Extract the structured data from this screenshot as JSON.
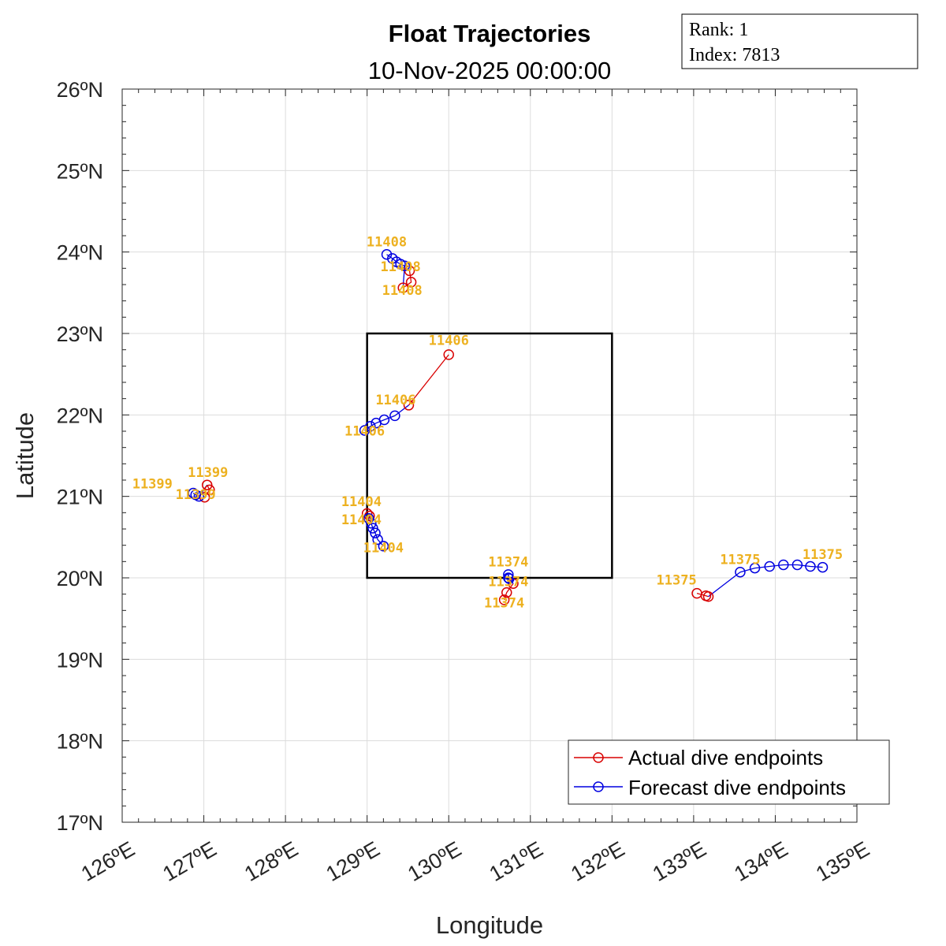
{
  "chart_data": {
    "type": "line",
    "title": "Float Trajectories",
    "subtitle": "10-Nov-2025 00:00:00",
    "xlabel": "Longitude",
    "ylabel": "Latitude",
    "xlim": [
      126,
      135
    ],
    "ylim": [
      17,
      26
    ],
    "xticks": [
      "126ºE",
      "127ºE",
      "128ºE",
      "129ºE",
      "130ºE",
      "131ºE",
      "132ºE",
      "133ºE",
      "134ºE",
      "135ºE"
    ],
    "yticks": [
      "17ºN",
      "18ºN",
      "19ºN",
      "20ºN",
      "21ºN",
      "22ºN",
      "23ºN",
      "24ºN",
      "25ºN",
      "26ºN"
    ],
    "grid": true,
    "legend_placement": "bottom-right",
    "info_box": {
      "rank": "Rank:  1",
      "index": "Index:  7813"
    },
    "region_box": {
      "lon": [
        129,
        132
      ],
      "lat": [
        20,
        23
      ]
    },
    "colors": {
      "actual": "#D90000",
      "forecast": "#0000E0",
      "label": "#EDB120",
      "box": "#000000"
    },
    "series": [
      {
        "name": "Actual dive endpoints",
        "color": "#D90000"
      },
      {
        "name": "Forecast dive endpoints",
        "color": "#0000E0"
      }
    ],
    "floats": [
      {
        "id": "11408",
        "actual": [
          [
            129.52,
            23.77
          ],
          [
            129.54,
            23.63
          ],
          [
            129.44,
            23.56
          ]
        ],
        "forecast": [
          [
            129.46,
            23.83
          ],
          [
            129.41,
            23.85
          ],
          [
            129.36,
            23.88
          ],
          [
            129.31,
            23.92
          ],
          [
            129.24,
            23.97
          ]
        ],
        "labels": [
          [
            129.24,
            24.07
          ],
          [
            129.41,
            23.95
          ],
          [
            129.43,
            23.66
          ]
        ]
      },
      {
        "id": "11406",
        "actual": [
          [
            130.0,
            22.74
          ],
          [
            129.51,
            22.12
          ]
        ],
        "forecast": [
          [
            129.34,
            21.99
          ],
          [
            129.21,
            21.94
          ],
          [
            129.11,
            21.9
          ],
          [
            129.04,
            21.86
          ],
          [
            128.97,
            21.81
          ]
        ],
        "labels": [
          [
            130.0,
            22.86
          ],
          [
            129.35,
            22.13
          ],
          [
            128.97,
            21.93
          ]
        ]
      },
      {
        "id": "11399",
        "actual": [
          [
            127.01,
            20.99
          ],
          [
            127.07,
            21.08
          ],
          [
            127.04,
            21.14
          ]
        ],
        "forecast": [
          [
            126.94,
            21.0
          ],
          [
            126.9,
            21.02
          ],
          [
            126.87,
            21.04
          ]
        ],
        "labels": [
          [
            127.05,
            21.24
          ],
          [
            126.9,
            21.15
          ],
          [
            126.93,
            21.1
          ]
        ]
      },
      {
        "id": "11404",
        "actual": [
          [
            129.0,
            20.79
          ],
          [
            129.03,
            20.76
          ]
        ],
        "forecast": [
          [
            129.02,
            20.73
          ],
          [
            129.05,
            20.67
          ],
          [
            129.07,
            20.61
          ],
          [
            129.1,
            20.55
          ],
          [
            129.13,
            20.47
          ],
          [
            129.2,
            20.39
          ]
        ],
        "labels": [
          [
            128.93,
            20.88
          ],
          [
            128.93,
            20.84
          ],
          [
            129.2,
            20.5
          ]
        ]
      },
      {
        "id": "11374",
        "actual": [
          [
            130.68,
            19.73
          ],
          [
            130.71,
            19.82
          ],
          [
            130.79,
            19.93
          ]
        ],
        "forecast": [
          [
            130.73,
            20.0
          ],
          [
            130.73,
            20.04
          ],
          [
            130.74,
            19.99
          ]
        ],
        "labels": [
          [
            130.73,
            20.14
          ],
          [
            130.73,
            20.08
          ],
          [
            130.68,
            19.82
          ]
        ]
      },
      {
        "id": "11375",
        "actual": [
          [
            133.04,
            19.81
          ],
          [
            133.15,
            19.78
          ],
          [
            133.18,
            19.77
          ]
        ],
        "forecast": [
          [
            133.57,
            20.07
          ],
          [
            133.75,
            20.12
          ],
          [
            133.93,
            20.14
          ],
          [
            134.1,
            20.16
          ],
          [
            134.27,
            20.16
          ],
          [
            134.43,
            20.14
          ],
          [
            134.58,
            20.13
          ]
        ],
        "labels": [
          [
            132.79,
            19.92
          ],
          [
            133.57,
            20.17
          ],
          [
            134.58,
            20.23
          ]
        ]
      }
    ]
  }
}
